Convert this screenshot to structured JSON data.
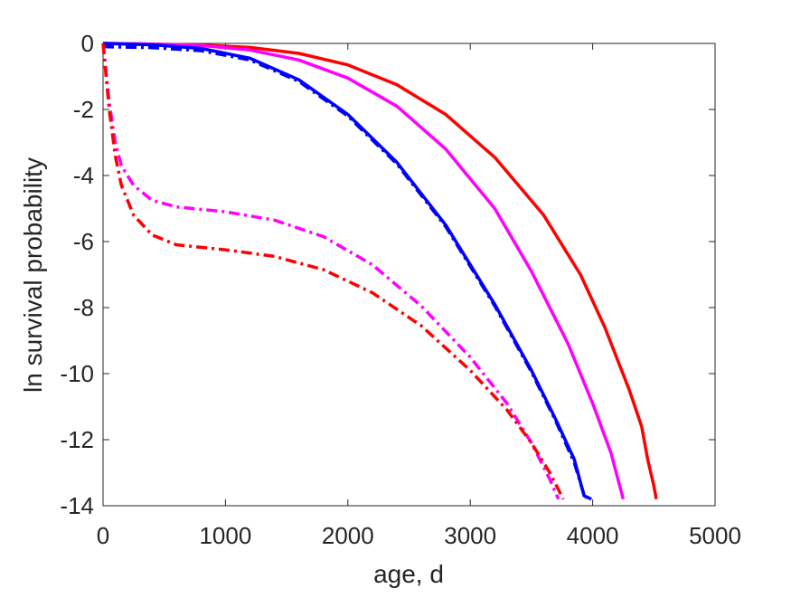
{
  "chart_data": {
    "type": "line",
    "title": "",
    "xlabel": "age, d",
    "ylabel": "ln survival probability",
    "xlim": [
      0,
      5000
    ],
    "ylim": [
      -14,
      0
    ],
    "xticks": [
      0,
      1000,
      2000,
      3000,
      4000,
      5000
    ],
    "yticks": [
      0,
      -2,
      -4,
      -6,
      -8,
      -10,
      -12,
      -14
    ],
    "grid": false,
    "legend": "none",
    "series": [
      {
        "color": "#ff0000",
        "style": "solid",
        "points": [
          [
            0,
            0
          ],
          [
            400,
            -0.02
          ],
          [
            800,
            -0.05
          ],
          [
            1200,
            -0.12
          ],
          [
            1600,
            -0.3
          ],
          [
            2000,
            -0.65
          ],
          [
            2400,
            -1.25
          ],
          [
            2800,
            -2.15
          ],
          [
            3200,
            -3.45
          ],
          [
            3600,
            -5.2
          ],
          [
            3900,
            -7.0
          ],
          [
            4100,
            -8.6
          ],
          [
            4300,
            -10.5
          ],
          [
            4400,
            -11.6
          ],
          [
            4450,
            -12.6
          ],
          [
            4500,
            -13.4
          ],
          [
            4520,
            -13.8
          ]
        ]
      },
      {
        "color": "#ff00ff",
        "style": "solid",
        "points": [
          [
            0,
            0
          ],
          [
            400,
            -0.02
          ],
          [
            800,
            -0.06
          ],
          [
            1200,
            -0.2
          ],
          [
            1600,
            -0.5
          ],
          [
            2000,
            -1.05
          ],
          [
            2400,
            -1.9
          ],
          [
            2800,
            -3.2
          ],
          [
            3200,
            -5.0
          ],
          [
            3500,
            -6.9
          ],
          [
            3800,
            -9.1
          ],
          [
            4000,
            -10.9
          ],
          [
            4150,
            -12.4
          ],
          [
            4250,
            -13.8
          ]
        ]
      },
      {
        "color": "#0000ff",
        "style": "solid",
        "points": [
          [
            0,
            0
          ],
          [
            400,
            -0.04
          ],
          [
            800,
            -0.15
          ],
          [
            1200,
            -0.45
          ],
          [
            1600,
            -1.1
          ],
          [
            2000,
            -2.15
          ],
          [
            2400,
            -3.6
          ],
          [
            2800,
            -5.5
          ],
          [
            3200,
            -7.9
          ],
          [
            3500,
            -9.9
          ],
          [
            3700,
            -11.4
          ],
          [
            3850,
            -12.6
          ],
          [
            3930,
            -13.7
          ],
          [
            3990,
            -13.8
          ]
        ]
      },
      {
        "color": "#0000ff",
        "style": "dashdot",
        "points": [
          [
            0,
            -0.1
          ],
          [
            400,
            -0.13
          ],
          [
            800,
            -0.22
          ],
          [
            1200,
            -0.5
          ],
          [
            1600,
            -1.15
          ],
          [
            2000,
            -2.2
          ],
          [
            2400,
            -3.65
          ],
          [
            2800,
            -5.55
          ],
          [
            3200,
            -7.95
          ],
          [
            3500,
            -9.95
          ],
          [
            3700,
            -11.45
          ],
          [
            3850,
            -12.7
          ],
          [
            3940,
            -13.8
          ]
        ]
      },
      {
        "color": "#ff00ff",
        "style": "dashdot",
        "points": [
          [
            0,
            0
          ],
          [
            50,
            -1.8
          ],
          [
            100,
            -3.0
          ],
          [
            150,
            -3.7
          ],
          [
            250,
            -4.3
          ],
          [
            400,
            -4.75
          ],
          [
            600,
            -4.95
          ],
          [
            1000,
            -5.1
          ],
          [
            1400,
            -5.35
          ],
          [
            1800,
            -5.85
          ],
          [
            2200,
            -6.7
          ],
          [
            2600,
            -7.95
          ],
          [
            3000,
            -9.5
          ],
          [
            3300,
            -10.9
          ],
          [
            3500,
            -12.1
          ],
          [
            3650,
            -13.2
          ],
          [
            3720,
            -13.8
          ]
        ]
      },
      {
        "color": "#ff0000",
        "style": "dashdot",
        "points": [
          [
            0,
            0
          ],
          [
            50,
            -2.0
          ],
          [
            100,
            -3.4
          ],
          [
            150,
            -4.3
          ],
          [
            250,
            -5.2
          ],
          [
            400,
            -5.8
          ],
          [
            600,
            -6.1
          ],
          [
            1000,
            -6.25
          ],
          [
            1400,
            -6.45
          ],
          [
            1800,
            -6.85
          ],
          [
            2200,
            -7.55
          ],
          [
            2600,
            -8.55
          ],
          [
            3000,
            -9.9
          ],
          [
            3300,
            -11.1
          ],
          [
            3500,
            -12.1
          ],
          [
            3650,
            -13.0
          ],
          [
            3760,
            -13.8
          ]
        ]
      }
    ]
  }
}
